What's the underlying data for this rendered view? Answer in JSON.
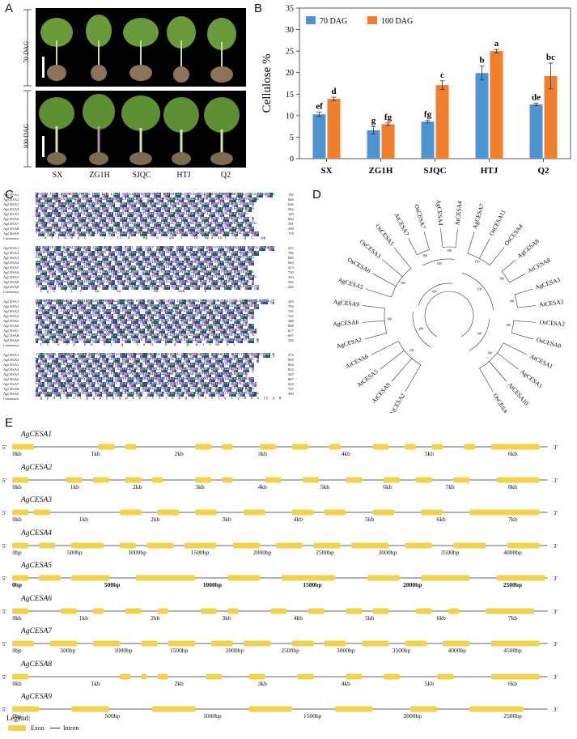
{
  "panel_letters": {
    "a": "A",
    "b": "B",
    "c": "C",
    "d": "D",
    "e": "E"
  },
  "panelA": {
    "row_labels": [
      "70 DAG",
      "100 DAG"
    ],
    "cultivars": [
      "SX",
      "ZG1H",
      "SJQC",
      "HTJ",
      "Q2"
    ]
  },
  "chart_data": {
    "type": "bar",
    "categories": [
      "SX",
      "ZG1H",
      "SJQC",
      "HTJ",
      "Q2"
    ],
    "series": [
      {
        "name": "70 DAG",
        "values": [
          10.3,
          6.6,
          8.6,
          19.9,
          12.6
        ],
        "errors": [
          0.5,
          0.9,
          0.3,
          1.6,
          0.3
        ],
        "letters": [
          "ef",
          "g",
          "fg",
          "b",
          "de"
        ],
        "color": "#4f93d1"
      },
      {
        "name": "100 DAG",
        "values": [
          13.9,
          8.0,
          17.1,
          25.0,
          19.2
        ],
        "errors": [
          0.4,
          0.3,
          1.0,
          0.4,
          3.0
        ],
        "letters": [
          "d",
          "fg",
          "c",
          "a",
          "bc"
        ],
        "color": "#f07f2e"
      }
    ],
    "ylabel": "Cellulose %",
    "ylim": [
      0,
      35
    ],
    "yticks": [
      0,
      5,
      10,
      15,
      20,
      25,
      30,
      35
    ],
    "legend_position": "top-left"
  },
  "panelC": {
    "block_numbers": [
      [
        "156",
        "646",
        "626",
        "584",
        "149",
        "664",
        "381",
        "330",
        "176"
      ],
      [
        "215",
        "706",
        "685",
        "644",
        "213",
        "730",
        "393",
        "592",
        "242"
      ],
      [
        "293",
        "784",
        "765",
        "722",
        "288",
        "808",
        "617",
        "667",
        "320"
      ],
      [
        "372",
        "863",
        "844",
        "822",
        "367",
        "887",
        "520",
        "747",
        "399"
      ]
    ],
    "sequence_names": [
      "AgCESA1",
      "AgCESA2",
      "AgCESA3",
      "AgCESA4",
      "AgCESA5",
      "AgCESA6",
      "AgCESA7",
      "AgCESA8",
      "AgCESA9"
    ],
    "consensus_label": "Consensus",
    "sequence_rows": [
      [
        "TP.RPLTRK..ISNNKLSPYRIVI LRV LMV LGLF..YRII HPV..DAY GL WLTSV ICE IWFAVSWLLD QFPKWNPI NRETYL DRLSLRYERE G",
        "TPNRPTPRK.NISPARKLSPYRVVI LRLIV LAIF..LRYRILHPV..NAYPLWLTSVICEIWFAVSWLLDQFPKWYPVNRETYLDRLSLRYERE G",
        "GSSEPLNRK..LSNVKLSPYRVVIFFVRLIVLGLF..LRYRIMNPV..NAYPLWLVSVICEIWFAISWILDQFPKWLPINRETYLDRLALRYDREG",
        "AGSMSKGSFSSRSLVKLSPYRIVIALRLIVLAFF..LRYRILNPV..EAMWLWLTSVICEVWFALSWILDQFPKWFPITRETYLDRLSLRYERE G",
        "TP.RPLTRK..ISNNKLSPYRIVIVLRLIVLGFF..YRVTHPVD.SAYGLWLTSVICEIWFAVSWLLDQFPKWYPINRETYLDRLSLRYERDG",
        "TPNRPTPRK.NISPAKLSPYRVVIVLRLIVLAIF..LRYRILHPV..NAYPLWLTSVICEIWFAVSWLLDQFPKWYPVNRETYLDRLSLRYERE G",
        "GSS..PLNRK..LSNVKLSPYRVVIFFVRLIVLGLF..LRYRIMNPV..NAYPLWLVSVICEIWFAISWILDQFPKWLPINRETYLDRLALRYDREG",
        "AGSMSKGSFSSRSLVKLSPYRIVIALRLIVLAFF..LRYRILNPV..EAMWLWLTSVICEVWFALSWILDQFPKWFPITRETYLDRLSLRYERE G",
        "TPNRPTPRK.NISPARKLSPYRVVI LRLIV LAIF..LRYRILHPV..NAYPLWLTSVICEIWFAVSWLLDQFPKWYPVNRETYLDRLSLRYERE G"
      ]
    ],
    "consensus_rows": [
      "    a  f  l  d  e  y  c        i     rl   d      ep    n     pe   l     tv   ep a  sc l    l   g  l    pp",
      "  t  g  c    f  l   f      kk        ee               kk         kek         e",
      "  f  r    e   r  y    n  e     c  l    g      l  v  ll     n   d     p   w  l  l  ee   v  i",
      "  g  y  d  e  d  c  l  g  g  w  y  p  y  p  a  p  l  l  i  l  e  a  g  d  l  i  s  i  v  i  y  d  h  v  rs  y  d"
    ]
  },
  "panelD": {
    "taxa": [
      "AtCESA2",
      "AtCESA9",
      "AtCESA5",
      "AtCESA6",
      "AgCESA2",
      "AgCESA6",
      "AgCESA9",
      "AgCESA5",
      "OsCESA6",
      "OsCESA3",
      "OsCESA5",
      "AtCESA7",
      "OsCESA7",
      "AgCESA4",
      "AtCESA4",
      "AgCESA7",
      "OsCESA11",
      "OsCESA4",
      "AgCESA8",
      "AtCESA8",
      "AgCESA3",
      "AtCESA3",
      "OsCESA2",
      "OsCESA8",
      "AtCESA1",
      "AgCESA1",
      "AtCESA10",
      "OsCESA1"
    ],
    "bootstrap": [
      "100",
      "100",
      "100",
      "100",
      "100",
      "100",
      "100",
      "100",
      "100",
      "100",
      "100",
      "100",
      "100",
      "100",
      "100",
      "100",
      "100",
      "95",
      "98",
      "88",
      "97",
      "96",
      "72",
      "100",
      "100"
    ]
  },
  "panelE": {
    "end5": "5'",
    "end3": "3'",
    "genes": [
      {
        "name": "AgCESA1",
        "ticks": [
          "0kb",
          "1kb",
          "2kb",
          "3kb",
          "4kb",
          "5kb",
          "6kb"
        ],
        "bold": false
      },
      {
        "name": "AgCESA2",
        "ticks": [
          "0kb",
          "1kb",
          "2kb",
          "3kb",
          "4kb",
          "5kb",
          "6kb",
          "7kb",
          "8kb"
        ],
        "bold": false
      },
      {
        "name": "AgCESA3",
        "ticks": [
          "0kb",
          "1kb",
          "2kb",
          "3kb",
          "4kb",
          "5kb",
          "6kb",
          "7kb"
        ],
        "bold": false
      },
      {
        "name": "AgCESA4",
        "ticks": [
          "0bp",
          "500bp",
          "1000bp",
          "1500bp",
          "2000bp",
          "2500bp",
          "3000bp",
          "3500bp",
          "4000bp"
        ],
        "bold": false
      },
      {
        "name": "AgCESA5",
        "ticks": [
          "0bp",
          "500bp",
          "1000bp",
          "1500bp",
          "2000bp",
          "2500bp"
        ],
        "bold": true
      },
      {
        "name": "AgCESA6",
        "ticks": [
          "0kb",
          "1kb",
          "2kb",
          "3kb",
          "4kb",
          "5kb",
          "6kb",
          "7kb"
        ],
        "bold": false
      },
      {
        "name": "AgCESA7",
        "ticks": [
          "0bp",
          "500bp",
          "1000bp",
          "1500bp",
          "2000bp",
          "2500bp",
          "3000bp",
          "3500bp",
          "4000bp",
          "4500bp"
        ],
        "bold": false
      },
      {
        "name": "AgCESA8",
        "ticks": [
          "0kb",
          "1kb",
          "2kb",
          "3kb",
          "4kb",
          "5kb",
          "6kb"
        ],
        "bold": false
      },
      {
        "name": "AgCESA9",
        "ticks": [
          "0bp",
          "500bp",
          "1000bp",
          "1500bp",
          "2000bp",
          "2500bp"
        ],
        "bold": false
      }
    ],
    "legend_title": "Legend:",
    "legend_exon": "Exon",
    "legend_intron": "Intron",
    "exon_color": "#f2d14b"
  }
}
